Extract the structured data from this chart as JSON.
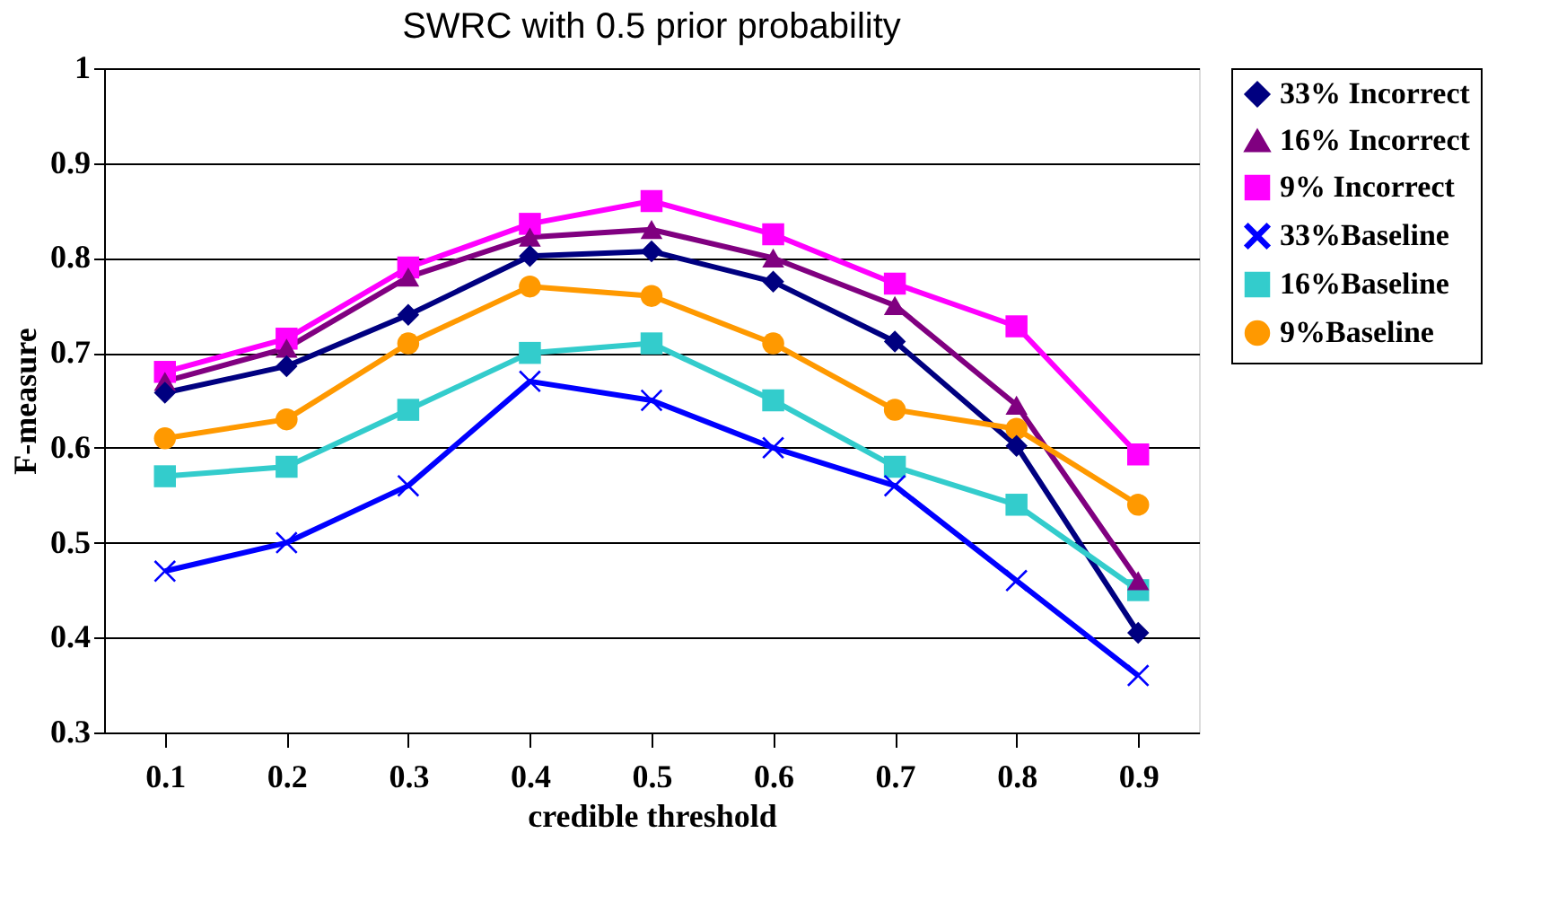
{
  "chart_data": {
    "type": "line",
    "title": "SWRC with 0.5 prior probability",
    "xlabel": "credible threshold",
    "ylabel": "F-measure",
    "categories": [
      "0.1",
      "0.2",
      "0.3",
      "0.4",
      "0.5",
      "0.6",
      "0.7",
      "0.8",
      "0.9"
    ],
    "ylim": [
      0.3,
      1.0
    ],
    "yticks": [
      0.3,
      0.4,
      0.5,
      0.6,
      0.7,
      0.8,
      0.9,
      1
    ],
    "grid": "y",
    "legend": "top right",
    "line_style": "solid",
    "series": [
      {
        "name": "33% Incorrect",
        "color": "#000080",
        "marker": "diamond",
        "values": [
          0.658,
          0.686,
          0.74,
          0.802,
          0.807,
          0.775,
          0.712,
          0.602,
          0.405
        ]
      },
      {
        "name": "16% Incorrect",
        "color": "#800080",
        "marker": "triangle",
        "values": [
          0.67,
          0.705,
          0.78,
          0.822,
          0.83,
          0.8,
          0.75,
          0.645,
          0.46
        ]
      },
      {
        "name": "9% Incorrect",
        "color": "#ff00ff",
        "marker": "square",
        "values": [
          0.68,
          0.715,
          0.79,
          0.836,
          0.86,
          0.825,
          0.773,
          0.728,
          0.593
        ]
      },
      {
        "name": "33%Baseline",
        "color": "#0000ff",
        "marker": "cross",
        "values": [
          0.47,
          0.5,
          0.56,
          0.67,
          0.65,
          0.6,
          0.56,
          0.46,
          0.36
        ]
      },
      {
        "name": "16%Baseline",
        "color": "#33cccc",
        "marker": "square",
        "values": [
          0.57,
          0.58,
          0.64,
          0.7,
          0.71,
          0.65,
          0.58,
          0.54,
          0.45
        ]
      },
      {
        "name": "9%Baseline",
        "color": "#ff9900",
        "marker": "circle",
        "values": [
          0.61,
          0.63,
          0.71,
          0.77,
          0.76,
          0.71,
          0.64,
          0.62,
          0.54
        ]
      }
    ]
  }
}
